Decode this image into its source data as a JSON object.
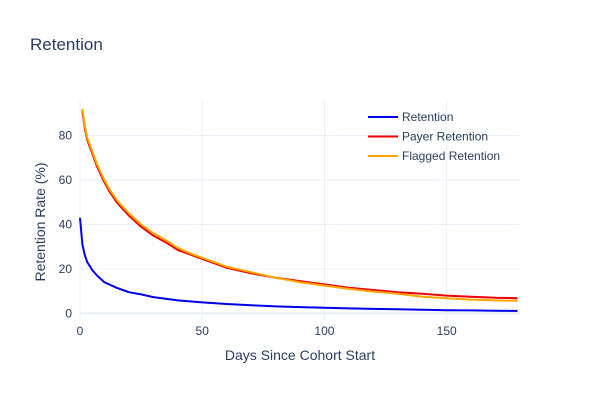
{
  "chart_data": {
    "type": "line",
    "title": "Retention",
    "xlabel": "Days Since Cohort Start",
    "ylabel": "Retention Rate (%)",
    "xlim": [
      0,
      180
    ],
    "ylim": [
      -3,
      96
    ],
    "xticks": [
      0,
      50,
      100,
      150
    ],
    "yticks": [
      0,
      20,
      40,
      60,
      80
    ],
    "grid": true,
    "legend": "top-right",
    "series": [
      {
        "name": "Retention",
        "color": "#0000ee",
        "x": [
          0,
          1,
          2,
          3,
          5,
          7,
          10,
          15,
          20,
          25,
          30,
          40,
          50,
          60,
          70,
          80,
          90,
          100,
          110,
          120,
          130,
          140,
          150,
          160,
          170,
          179
        ],
        "y": [
          43,
          31,
          26,
          23,
          19.5,
          17,
          14,
          11.5,
          9.5,
          8.5,
          7.3,
          5.8,
          4.9,
          4.2,
          3.6,
          3.1,
          2.8,
          2.5,
          2.2,
          2.0,
          1.8,
          1.6,
          1.4,
          1.3,
          1.2,
          1.1
        ]
      },
      {
        "name": "Payer Retention",
        "color": "#ee0000",
        "x": [
          1,
          2,
          3,
          5,
          7,
          10,
          12,
          15,
          20,
          25,
          30,
          35,
          40,
          45,
          50,
          55,
          60,
          70,
          80,
          90,
          100,
          110,
          120,
          130,
          140,
          150,
          160,
          170,
          179
        ],
        "y": [
          91,
          83,
          78,
          72,
          66,
          59,
          55,
          50,
          44,
          39,
          35,
          32,
          28.5,
          26.5,
          24.5,
          22.5,
          20.5,
          18,
          16,
          14.5,
          13,
          11.5,
          10.5,
          9.5,
          8.8,
          8.0,
          7.5,
          7.0,
          6.8
        ]
      },
      {
        "name": "Flagged Retention",
        "color": "#ffa500",
        "x": [
          1,
          2,
          3,
          5,
          7,
          10,
          12,
          15,
          20,
          25,
          30,
          35,
          40,
          45,
          50,
          55,
          60,
          70,
          80,
          90,
          100,
          110,
          120,
          130,
          140,
          150,
          160,
          170,
          179
        ],
        "y": [
          92,
          84,
          79,
          73,
          67,
          60,
          56,
          51,
          45,
          40,
          36,
          33,
          29.5,
          27,
          25,
          23,
          21,
          18.5,
          16,
          14,
          12.5,
          11,
          9.8,
          8.8,
          7.5,
          6.8,
          6.2,
          5.8,
          5.6
        ]
      }
    ]
  }
}
